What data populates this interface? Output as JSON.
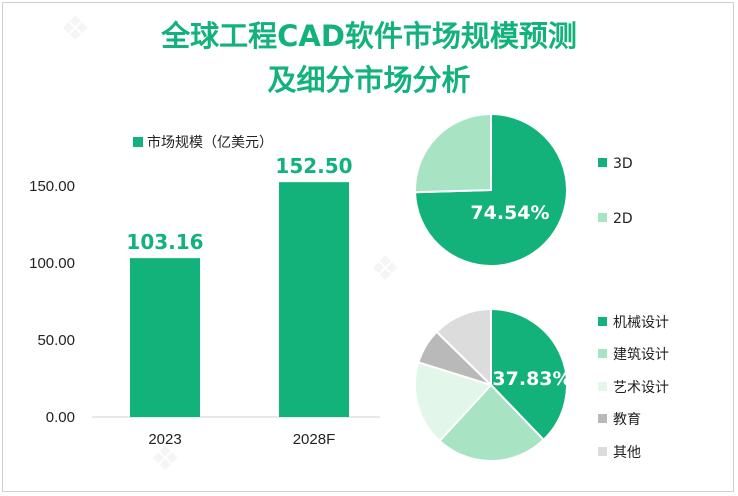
{
  "title_line1": "全球工程CAD软件市场规模预测",
  "title_line2": "及细分市场分析",
  "colors": {
    "accent": "#12b27a",
    "bar": "#12b27a",
    "pie_3d": "#12b27a",
    "pie_2d": "#a8e4c3",
    "mech": "#12b27a",
    "arch": "#a8e4c3",
    "art": "#e3f6ea",
    "edu": "#b9b9b9",
    "other": "#dcdcdc"
  },
  "chart_data": [
    {
      "type": "bar",
      "legend": "市场规模（亿美元）",
      "series": [
        {
          "name": "市场规模（亿美元）",
          "values": [
            103.16,
            152.5
          ]
        }
      ],
      "categories": [
        "2023",
        "2028F"
      ],
      "data_labels": [
        "103.16",
        "152.50"
      ],
      "yticks": [
        "0.00",
        "50.00",
        "100.00",
        "150.00"
      ],
      "ytick_values": [
        0,
        50,
        100,
        150
      ],
      "ylim": [
        0,
        150
      ],
      "grid": false
    },
    {
      "type": "pie",
      "labels": [
        "3D",
        "2D"
      ],
      "values": [
        74.54,
        25.46
      ],
      "data_label": "74.54%",
      "legend_placement": "right"
    },
    {
      "type": "pie",
      "labels": [
        "机械设计",
        "建筑设计",
        "艺术设计",
        "教育",
        "其他"
      ],
      "values": [
        37.83,
        24.0,
        18.0,
        7.5,
        12.67
      ],
      "data_label": "37.83%",
      "legend_placement": "right"
    }
  ]
}
